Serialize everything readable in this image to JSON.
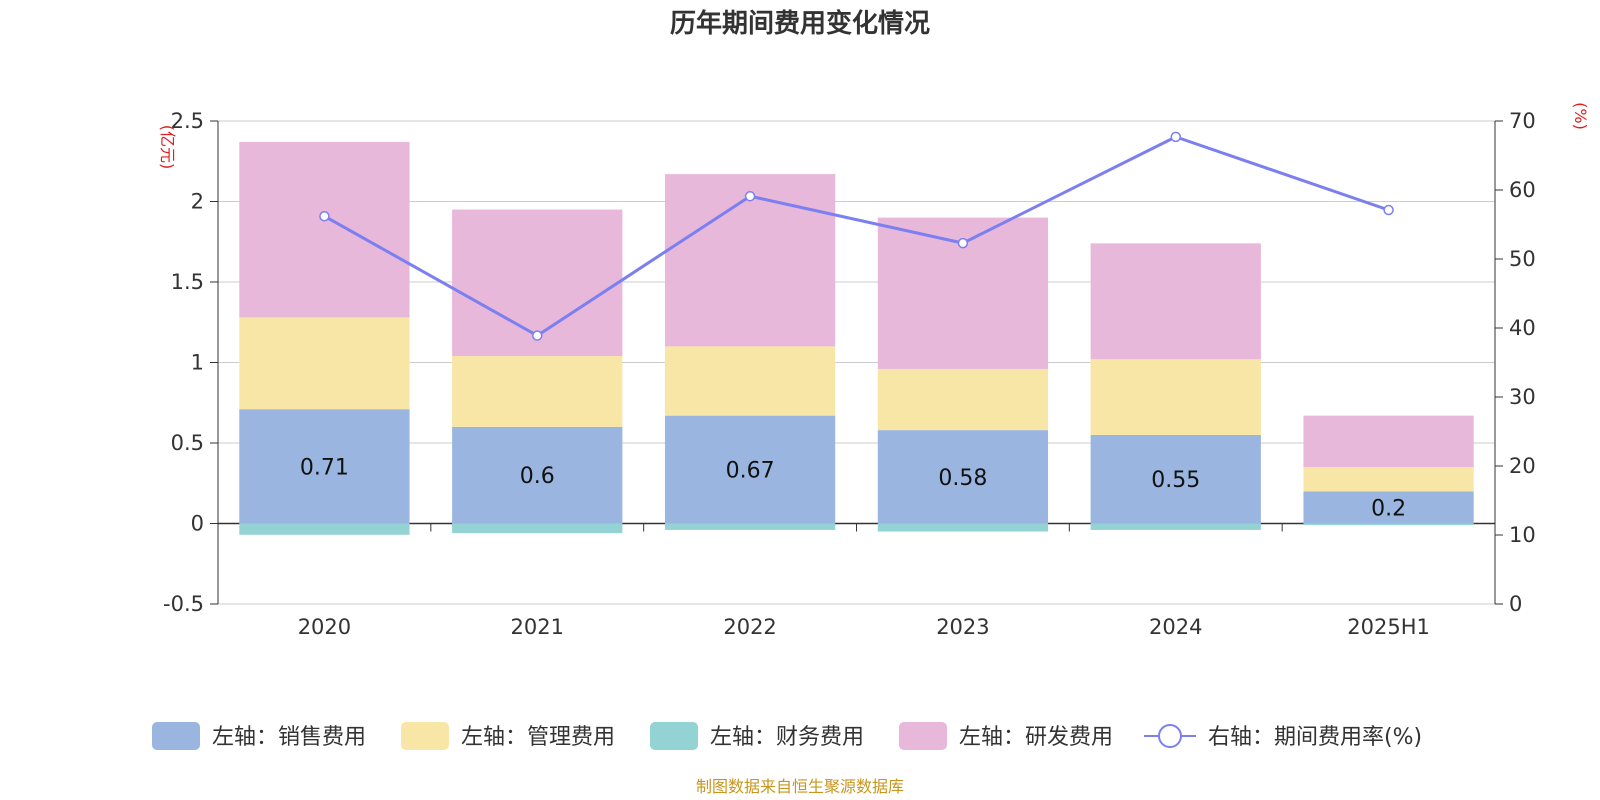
{
  "chart_data": {
    "type": "bar",
    "title": "历年期间费用变化情况",
    "categories": [
      "2020",
      "2021",
      "2022",
      "2023",
      "2024",
      "2025H1"
    ],
    "left_axis": {
      "unit": "(亿元)",
      "ylim": [
        -0.5,
        2.5
      ],
      "ticks": [
        -0.5,
        0,
        0.5,
        1,
        1.5,
        2,
        2.5
      ],
      "tick_labels": [
        "-0.5",
        "0",
        "0.5",
        "1",
        "1.5",
        "2",
        "2.5"
      ]
    },
    "right_axis": {
      "unit": "(%)",
      "ylim": [
        0,
        70
      ],
      "ticks": [
        0,
        10,
        20,
        30,
        40,
        50,
        60,
        70
      ],
      "tick_labels": [
        "0",
        "10",
        "20",
        "30",
        "40",
        "50",
        "60",
        "70"
      ]
    },
    "series": [
      {
        "name": "左轴：销售费用",
        "type": "bar",
        "axis": "left",
        "color": "#9ab6e0",
        "values": [
          0.71,
          0.6,
          0.67,
          0.58,
          0.55,
          0.2
        ],
        "labels": [
          "0.71",
          "0.6",
          "0.67",
          "0.58",
          "0.55",
          "0.2"
        ]
      },
      {
        "name": "左轴：管理费用",
        "type": "bar",
        "axis": "left",
        "color": "#f8e6a6",
        "values": [
          0.57,
          0.44,
          0.43,
          0.38,
          0.47,
          0.15
        ]
      },
      {
        "name": "左轴：财务费用",
        "type": "bar",
        "axis": "left",
        "color": "#94d3d4",
        "values": [
          -0.07,
          -0.06,
          -0.04,
          -0.05,
          -0.04,
          -0.01
        ]
      },
      {
        "name": "左轴：研发费用",
        "type": "bar",
        "axis": "left",
        "color": "#e7b8da",
        "values": [
          1.09,
          0.91,
          1.07,
          0.94,
          0.72,
          0.32
        ]
      },
      {
        "name": "右轴：期间费用率(%)",
        "type": "line",
        "axis": "right",
        "color": "#7b7ff0",
        "values": [
          56.2,
          38.9,
          59.1,
          52.3,
          67.7,
          57.1
        ]
      }
    ],
    "grid": true,
    "legend_position": "bottom"
  },
  "source_note": "制图数据来自恒生聚源数据库"
}
